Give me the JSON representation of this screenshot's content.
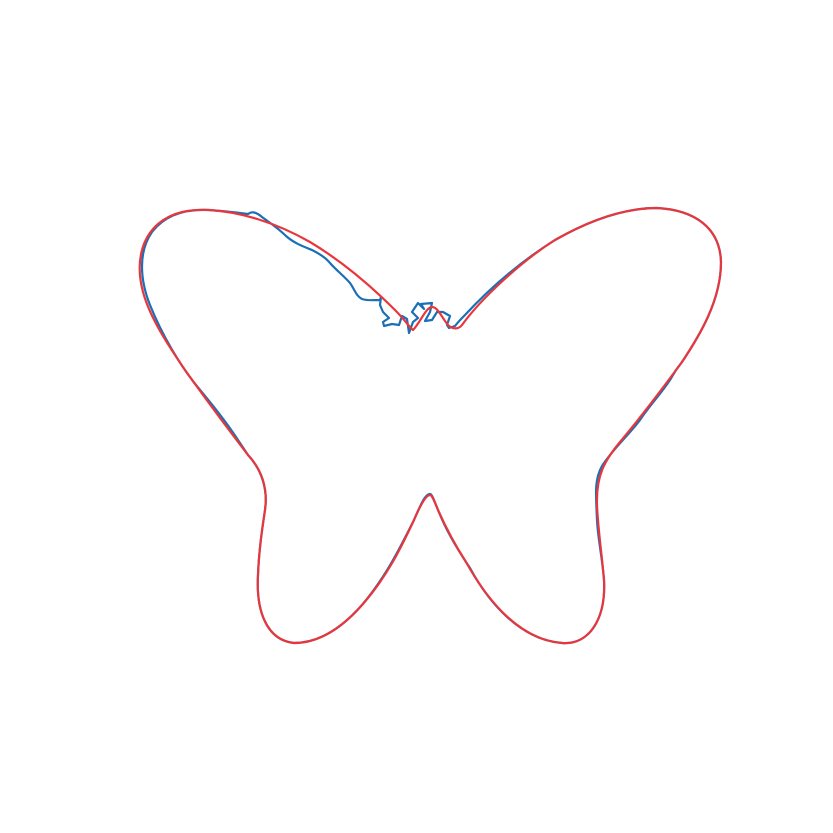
{
  "figure": {
    "background": "#ffffff",
    "shape": "butterfly",
    "curves": [
      {
        "name": "noisy-outline",
        "color": "#1a6fb5"
      },
      {
        "name": "smooth-outline",
        "color": "#e8373c"
      }
    ]
  }
}
